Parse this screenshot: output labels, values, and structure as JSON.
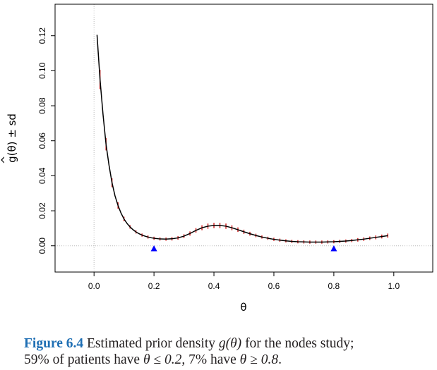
{
  "chart_data": {
    "type": "line",
    "title": "",
    "xlabel": "θ",
    "ylabel": "g(θ) ± sd",
    "ylabel_hat": "^",
    "xlim": [
      -0.13,
      1.13
    ],
    "ylim": [
      -0.015,
      0.138
    ],
    "x_ticks": [
      0.0,
      0.2,
      0.4,
      0.6,
      0.8,
      1.0
    ],
    "x_tick_labels": [
      "0.0",
      "0.2",
      "0.4",
      "0.6",
      "0.8",
      "1.0"
    ],
    "y_ticks": [
      0.0,
      0.02,
      0.04,
      0.06,
      0.08,
      0.1,
      0.12
    ],
    "y_tick_labels": [
      "0.00",
      "0.02",
      "0.04",
      "0.06",
      "0.08",
      "0.10",
      "0.12"
    ],
    "reference_lines": {
      "x": 0.0,
      "y": 0.0,
      "style": "dotted",
      "color": "#bbbbbb"
    },
    "series": [
      {
        "name": "g-hat",
        "color": "#000000",
        "x": [
          0.01,
          0.02,
          0.03,
          0.04,
          0.05,
          0.06,
          0.07,
          0.08,
          0.09,
          0.1,
          0.11,
          0.12,
          0.13,
          0.14,
          0.15,
          0.16,
          0.17,
          0.18,
          0.19,
          0.2,
          0.22,
          0.24,
          0.26,
          0.28,
          0.3,
          0.32,
          0.34,
          0.36,
          0.38,
          0.4,
          0.42,
          0.44,
          0.46,
          0.48,
          0.5,
          0.52,
          0.54,
          0.56,
          0.58,
          0.6,
          0.62,
          0.64,
          0.66,
          0.68,
          0.7,
          0.72,
          0.74,
          0.76,
          0.78,
          0.8,
          0.82,
          0.84,
          0.86,
          0.88,
          0.9,
          0.92,
          0.94,
          0.96,
          0.98
        ],
        "values": [
          0.1205,
          0.095,
          0.075,
          0.058,
          0.046,
          0.036,
          0.0285,
          0.023,
          0.0187,
          0.0153,
          0.0128,
          0.0108,
          0.0092,
          0.0079,
          0.0069,
          0.0061,
          0.0055,
          0.005,
          0.0046,
          0.0043,
          0.0039,
          0.0038,
          0.004,
          0.0045,
          0.0055,
          0.007,
          0.0088,
          0.0103,
          0.0112,
          0.0116,
          0.0116,
          0.0112,
          0.0103,
          0.0092,
          0.008,
          0.0069,
          0.0059,
          0.005,
          0.0043,
          0.0037,
          0.0032,
          0.0028,
          0.0025,
          0.0023,
          0.0022,
          0.0021,
          0.0021,
          0.0021,
          0.0022,
          0.0023,
          0.0025,
          0.0027,
          0.003,
          0.0034,
          0.0038,
          0.0043,
          0.0048,
          0.0053,
          0.0058
        ]
      }
    ],
    "error_bars": {
      "name": "± sd",
      "color": "#cc0000",
      "x": [
        0.02,
        0.04,
        0.06,
        0.08,
        0.1,
        0.12,
        0.14,
        0.16,
        0.18,
        0.2,
        0.22,
        0.24,
        0.26,
        0.28,
        0.3,
        0.32,
        0.34,
        0.36,
        0.38,
        0.4,
        0.42,
        0.44,
        0.46,
        0.48,
        0.5,
        0.52,
        0.54,
        0.56,
        0.58,
        0.6,
        0.62,
        0.64,
        0.66,
        0.68,
        0.7,
        0.72,
        0.74,
        0.76,
        0.78,
        0.8,
        0.82,
        0.84,
        0.86,
        0.88,
        0.9,
        0.92,
        0.94,
        0.96,
        0.98
      ],
      "sd": [
        0.0055,
        0.0035,
        0.0025,
        0.0018,
        0.0013,
        0.001,
        0.0009,
        0.0009,
        0.0009,
        0.0009,
        0.0009,
        0.0009,
        0.001,
        0.001,
        0.0011,
        0.0012,
        0.0013,
        0.0014,
        0.0015,
        0.0015,
        0.0015,
        0.0015,
        0.0014,
        0.0013,
        0.0012,
        0.0011,
        0.001,
        0.0009,
        0.0009,
        0.0009,
        0.0009,
        0.0009,
        0.0009,
        0.0009,
        0.0009,
        0.0009,
        0.0009,
        0.0009,
        0.0009,
        0.0009,
        0.0009,
        0.0009,
        0.0009,
        0.001,
        0.001,
        0.001,
        0.0011,
        0.0011,
        0.0012
      ]
    },
    "markers": [
      {
        "name": "threshold-0.2",
        "x": 0.2,
        "y": -0.0015,
        "shape": "triangle",
        "color": "#0000ff"
      },
      {
        "name": "threshold-0.8",
        "x": 0.8,
        "y": -0.0015,
        "shape": "triangle",
        "color": "#0000ff"
      }
    ]
  },
  "caption": {
    "label": "Figure 6.4",
    "text_1": " Estimated prior density ",
    "math_1": "g(θ)",
    "text_2": " for the nodes study;",
    "text_3": "59% of patients have ",
    "math_2": "θ ≤ 0.2",
    "text_4": ", 7% have ",
    "math_3": "θ ≥ 0.8",
    "text_5": "."
  }
}
